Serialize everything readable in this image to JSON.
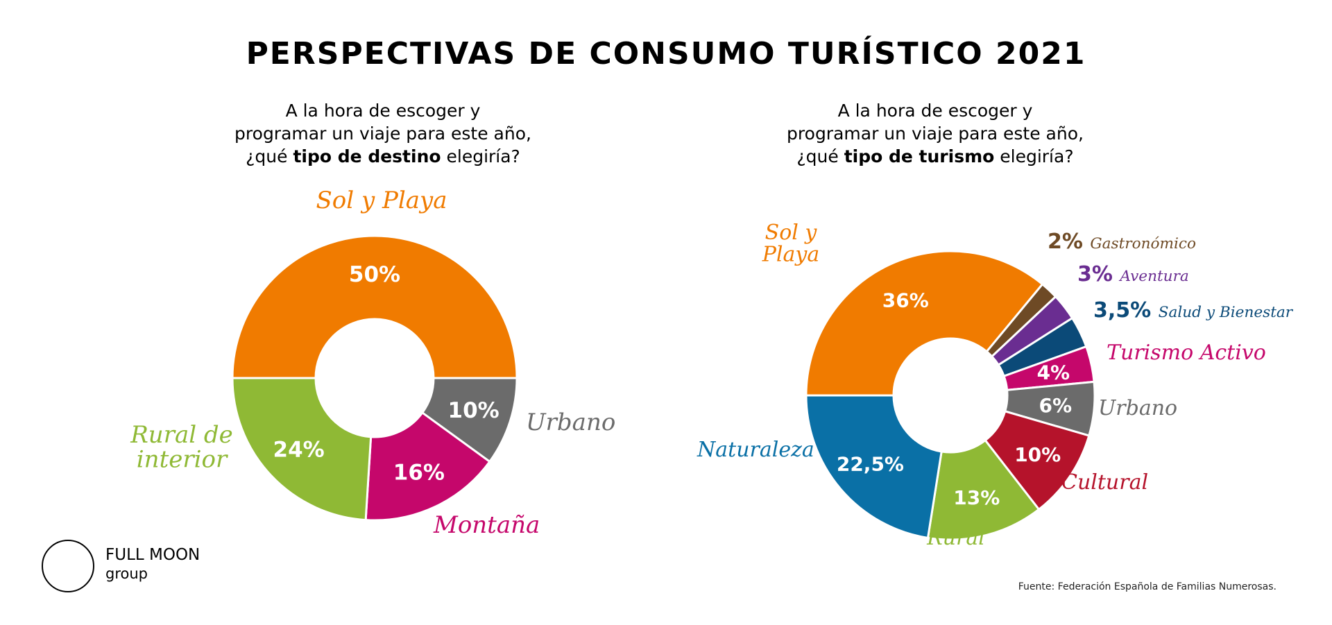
{
  "title": "PERSPECTIVAS DE CONSUMO TURÍSTICO 2021",
  "chart_data": [
    {
      "type": "pie",
      "donut": true,
      "question": {
        "line1": "A la hora de escoger y",
        "line2": "programar un viaje para este año,",
        "line3_pre": "¿qué ",
        "line3_bold": "tipo de destino",
        "line3_post": " elegiría?"
      },
      "slices": [
        {
          "name": "Sol y Playa",
          "value": 50,
          "label": "50%",
          "color": "#F07B00"
        },
        {
          "name": "Urbano",
          "value": 10,
          "label": "10%",
          "color": "#6B6B6B"
        },
        {
          "name": "Montaña",
          "value": 16,
          "label": "16%",
          "color": "#C5076B"
        },
        {
          "name": "Rural de interior",
          "value": 24,
          "label": "24%",
          "color": "#8FB935"
        }
      ]
    },
    {
      "type": "pie",
      "donut": true,
      "question": {
        "line1": "A la hora de escoger y",
        "line2": "programar un viaje para este año,",
        "line3_pre": "¿qué ",
        "line3_bold": "tipo de turismo",
        "line3_post": " elegiría?"
      },
      "slices": [
        {
          "name": "Sol y Playa",
          "value": 36,
          "label": "36%",
          "color": "#F07B00"
        },
        {
          "name": "Gastronómico",
          "value": 2,
          "label": "2%",
          "color": "#6E4A25"
        },
        {
          "name": "Aventura",
          "value": 3,
          "label": "3%",
          "color": "#6A2D91"
        },
        {
          "name": "Salud y Bienestar",
          "value": 3.5,
          "label": "3,5%",
          "color": "#0B4A78"
        },
        {
          "name": "Turismo Activo",
          "value": 4,
          "label": "4%",
          "color": "#C5076B"
        },
        {
          "name": "Urbano",
          "value": 6,
          "label": "6%",
          "color": "#6B6B6B"
        },
        {
          "name": "Cultural",
          "value": 10,
          "label": "10%",
          "color": "#B5132B"
        },
        {
          "name": "Rural",
          "value": 13,
          "label": "13%",
          "color": "#8FB935"
        },
        {
          "name": "Naturaleza",
          "value": 22.5,
          "label": "22,5%",
          "color": "#0A70A6"
        }
      ]
    }
  ],
  "logo": {
    "line1": "FULL MOON",
    "line2": "group"
  },
  "source": "Fuente: Federación Española de Familias Numerosas."
}
